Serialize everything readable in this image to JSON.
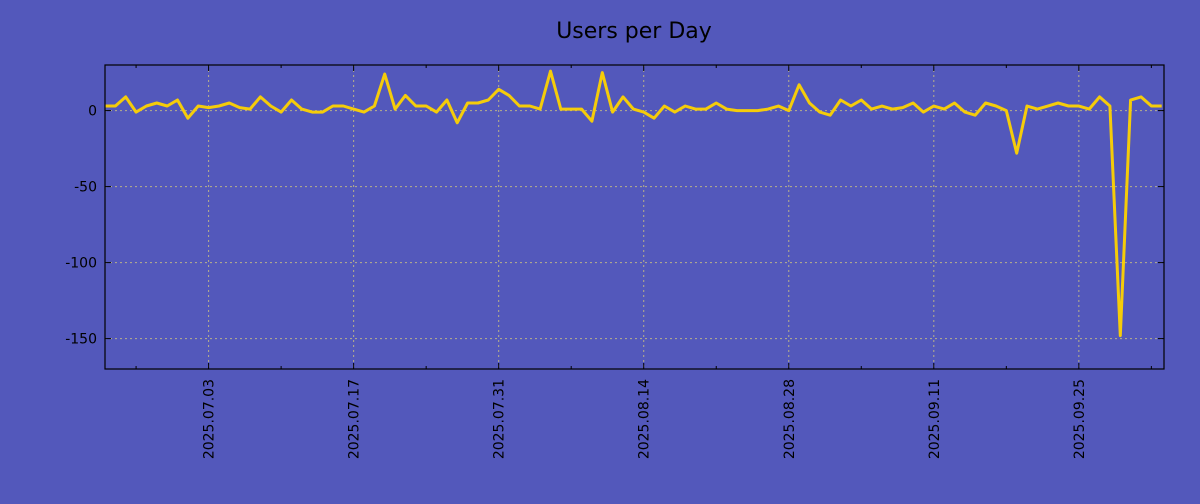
{
  "chart_data": {
    "type": "line",
    "title": "Users per Day",
    "xlabel": "",
    "ylabel": "",
    "start_date": "2025-06-23",
    "ylim": [
      -170,
      30
    ],
    "yticks": [
      0,
      -50,
      -100,
      -150
    ],
    "ytick_labels": [
      "0",
      "-50",
      "-100",
      "-150"
    ],
    "xtick_labels": [
      "2025.07.03",
      "2025.07.17",
      "2025.07.31",
      "2025.08.14",
      "2025.08.28",
      "2025.09.11",
      "2025.09.25"
    ],
    "xtick_day_offsets": [
      10,
      24,
      38,
      52,
      66,
      80,
      94
    ],
    "grid": true,
    "series": [
      {
        "name": "Users per Day",
        "color": "#f5cc0a",
        "values": [
          3,
          3,
          9,
          -1,
          3,
          5,
          3,
          7,
          -5,
          3,
          2,
          3,
          5,
          2,
          1,
          9,
          3,
          -1,
          7,
          1,
          -1,
          -1,
          3,
          3,
          1,
          -1,
          3,
          24,
          1,
          10,
          3,
          3,
          -1,
          7,
          -8,
          5,
          5,
          7,
          14,
          10,
          3,
          3,
          1,
          26,
          1,
          1,
          1,
          -7,
          25,
          -1,
          9,
          1,
          -1,
          -5,
          3,
          -1,
          3,
          1,
          1,
          5,
          1,
          0,
          0,
          0,
          1,
          3,
          0,
          17,
          5,
          -1,
          -3,
          7,
          3,
          7,
          1,
          3,
          1,
          2,
          5,
          -1,
          3,
          1,
          5,
          -1,
          -3,
          5,
          3,
          0,
          -28,
          3,
          1,
          3,
          5,
          3,
          3,
          1,
          9,
          3,
          -148,
          7,
          9,
          3,
          3
        ]
      }
    ]
  },
  "colors": {
    "background": "#5358bb",
    "line": "#f5cc0a",
    "grid": "#b8b08a"
  }
}
